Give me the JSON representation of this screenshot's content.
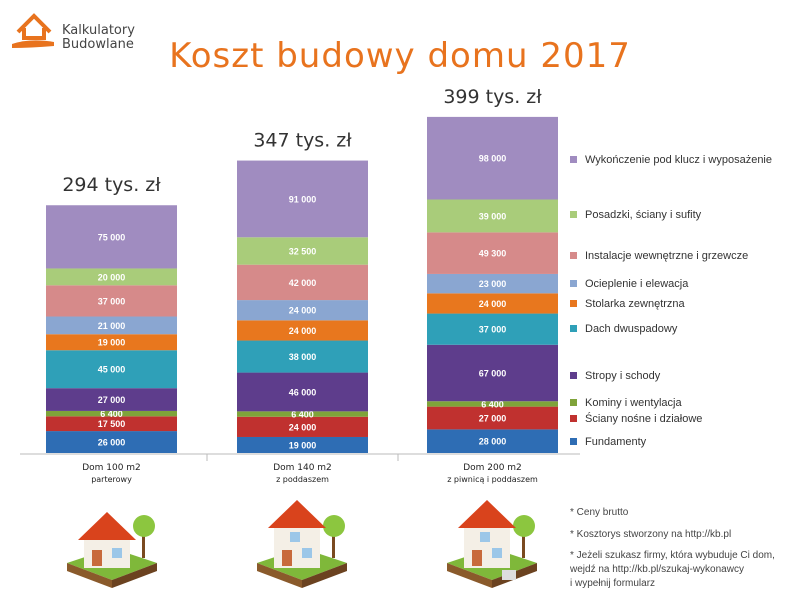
{
  "logo": {
    "line1": "Kalkulatory",
    "line2": "Budowlane",
    "color": "#e8731e"
  },
  "title": "Koszt budowy domu 2017",
  "chart_data": {
    "type": "bar",
    "stacked": true,
    "title": "Koszt budowy domu 2017",
    "categories": [
      [
        "Dom 100 m2",
        "parterowy"
      ],
      [
        "Dom 140 m2",
        "z poddaszem"
      ],
      [
        "Dom 200 m2",
        "z piwnicą i poddaszem"
      ]
    ],
    "totals_labels": [
      "294 tys. zł",
      "347 tys. zł",
      "399 tys. zł"
    ],
    "series": [
      {
        "name": "Fundamenty",
        "color": "#2e6db4",
        "values": [
          26000,
          19000,
          28000
        ],
        "labels": [
          "26 000",
          "19 000",
          "28 000"
        ]
      },
      {
        "name": "Ściany nośne i działowe",
        "color": "#c0312f",
        "values": [
          17500,
          24000,
          27000
        ],
        "labels": [
          "17 500",
          "24 000",
          "27 000"
        ]
      },
      {
        "name": "Kominy i wentylacja",
        "color": "#7fa33a",
        "values": [
          6400,
          6400,
          6400
        ],
        "labels": [
          "6 400",
          "6 400",
          "6 400"
        ]
      },
      {
        "name": "Stropy i schody",
        "color": "#5e3d8c",
        "values": [
          27000,
          46000,
          67000
        ],
        "labels": [
          "27 000",
          "46 000",
          "67 000"
        ]
      },
      {
        "name": "Dach dwuspadowy",
        "color": "#2fa0b8",
        "values": [
          45000,
          38000,
          37000
        ],
        "labels": [
          "45 000",
          "38 000",
          "37 000"
        ]
      },
      {
        "name": "Stolarka zewnętrzna",
        "color": "#e8771e",
        "values": [
          19000,
          24000,
          24000
        ],
        "labels": [
          "19 000",
          "24 000",
          "24 000"
        ]
      },
      {
        "name": "Ocieplenie i elewacja",
        "color": "#8aa6d1",
        "values": [
          21000,
          24000,
          23000
        ],
        "labels": [
          "21 000",
          "24 000",
          "23 000"
        ]
      },
      {
        "name": "Instalacje wewnętrzne i grzewcze",
        "color": "#d68a8a",
        "values": [
          37000,
          42000,
          49300
        ],
        "labels": [
          "37 000",
          "42 000",
          "49 300"
        ]
      },
      {
        "name": "Posadzki, ściany i sufity",
        "color": "#a9cc7a",
        "values": [
          20000,
          32500,
          39000
        ],
        "labels": [
          "20 000",
          "32 500",
          "39 000"
        ]
      },
      {
        "name": "Wykończenie pod klucz i wyposażenie",
        "color": "#a08cc0",
        "values": [
          75000,
          91000,
          98000
        ],
        "labels": [
          "75 000",
          "91 000",
          "98 000"
        ]
      }
    ],
    "legend": "right",
    "grid": false
  },
  "footnotes": [
    "* Ceny brutto",
    "* Kosztorys stworzony na http://kb.pl",
    "* Jeżeli szukasz firmy, która wybuduje Ci dom,",
    "wejdź na http://kb.pl/szukaj-wykonawcy",
    "i wypełnij formularz"
  ]
}
